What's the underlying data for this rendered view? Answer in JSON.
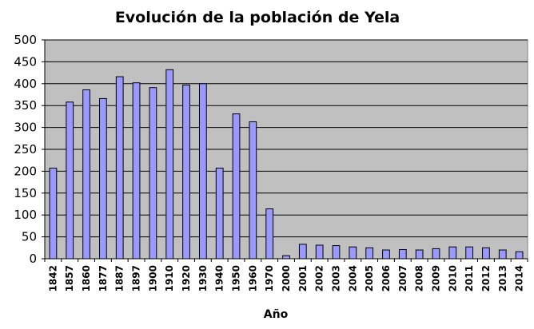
{
  "chart_data": {
    "type": "bar",
    "title": "Evolución de la población de Yela",
    "xlabel": "Año",
    "ylabel": "",
    "ylim": [
      0,
      500
    ],
    "yticks": [
      0,
      50,
      100,
      150,
      200,
      250,
      300,
      350,
      400,
      450,
      500
    ],
    "grid": true,
    "legend": "none",
    "categories": [
      "1842",
      "1857",
      "1860",
      "1877",
      "1887",
      "1897",
      "1900",
      "1910",
      "1920",
      "1930",
      "1940",
      "1950",
      "1960",
      "1970",
      "2000",
      "2001",
      "2002",
      "2003",
      "2004",
      "2005",
      "2006",
      "2007",
      "2008",
      "2009",
      "2010",
      "2011",
      "2012",
      "2013",
      "2014"
    ],
    "series": [
      {
        "values": [
          207,
          358,
          386,
          366,
          416,
          402,
          391,
          432,
          397,
          400,
          207,
          331,
          313,
          114,
          7,
          33,
          31,
          30,
          27,
          25,
          20,
          21,
          20,
          23,
          27,
          27,
          25,
          20,
          16
        ]
      }
    ],
    "colors": {
      "plot_background": "#c0c0c0",
      "bar_fill": "#9999ff",
      "bar_stroke": "#000000",
      "grid": "#000000"
    }
  }
}
